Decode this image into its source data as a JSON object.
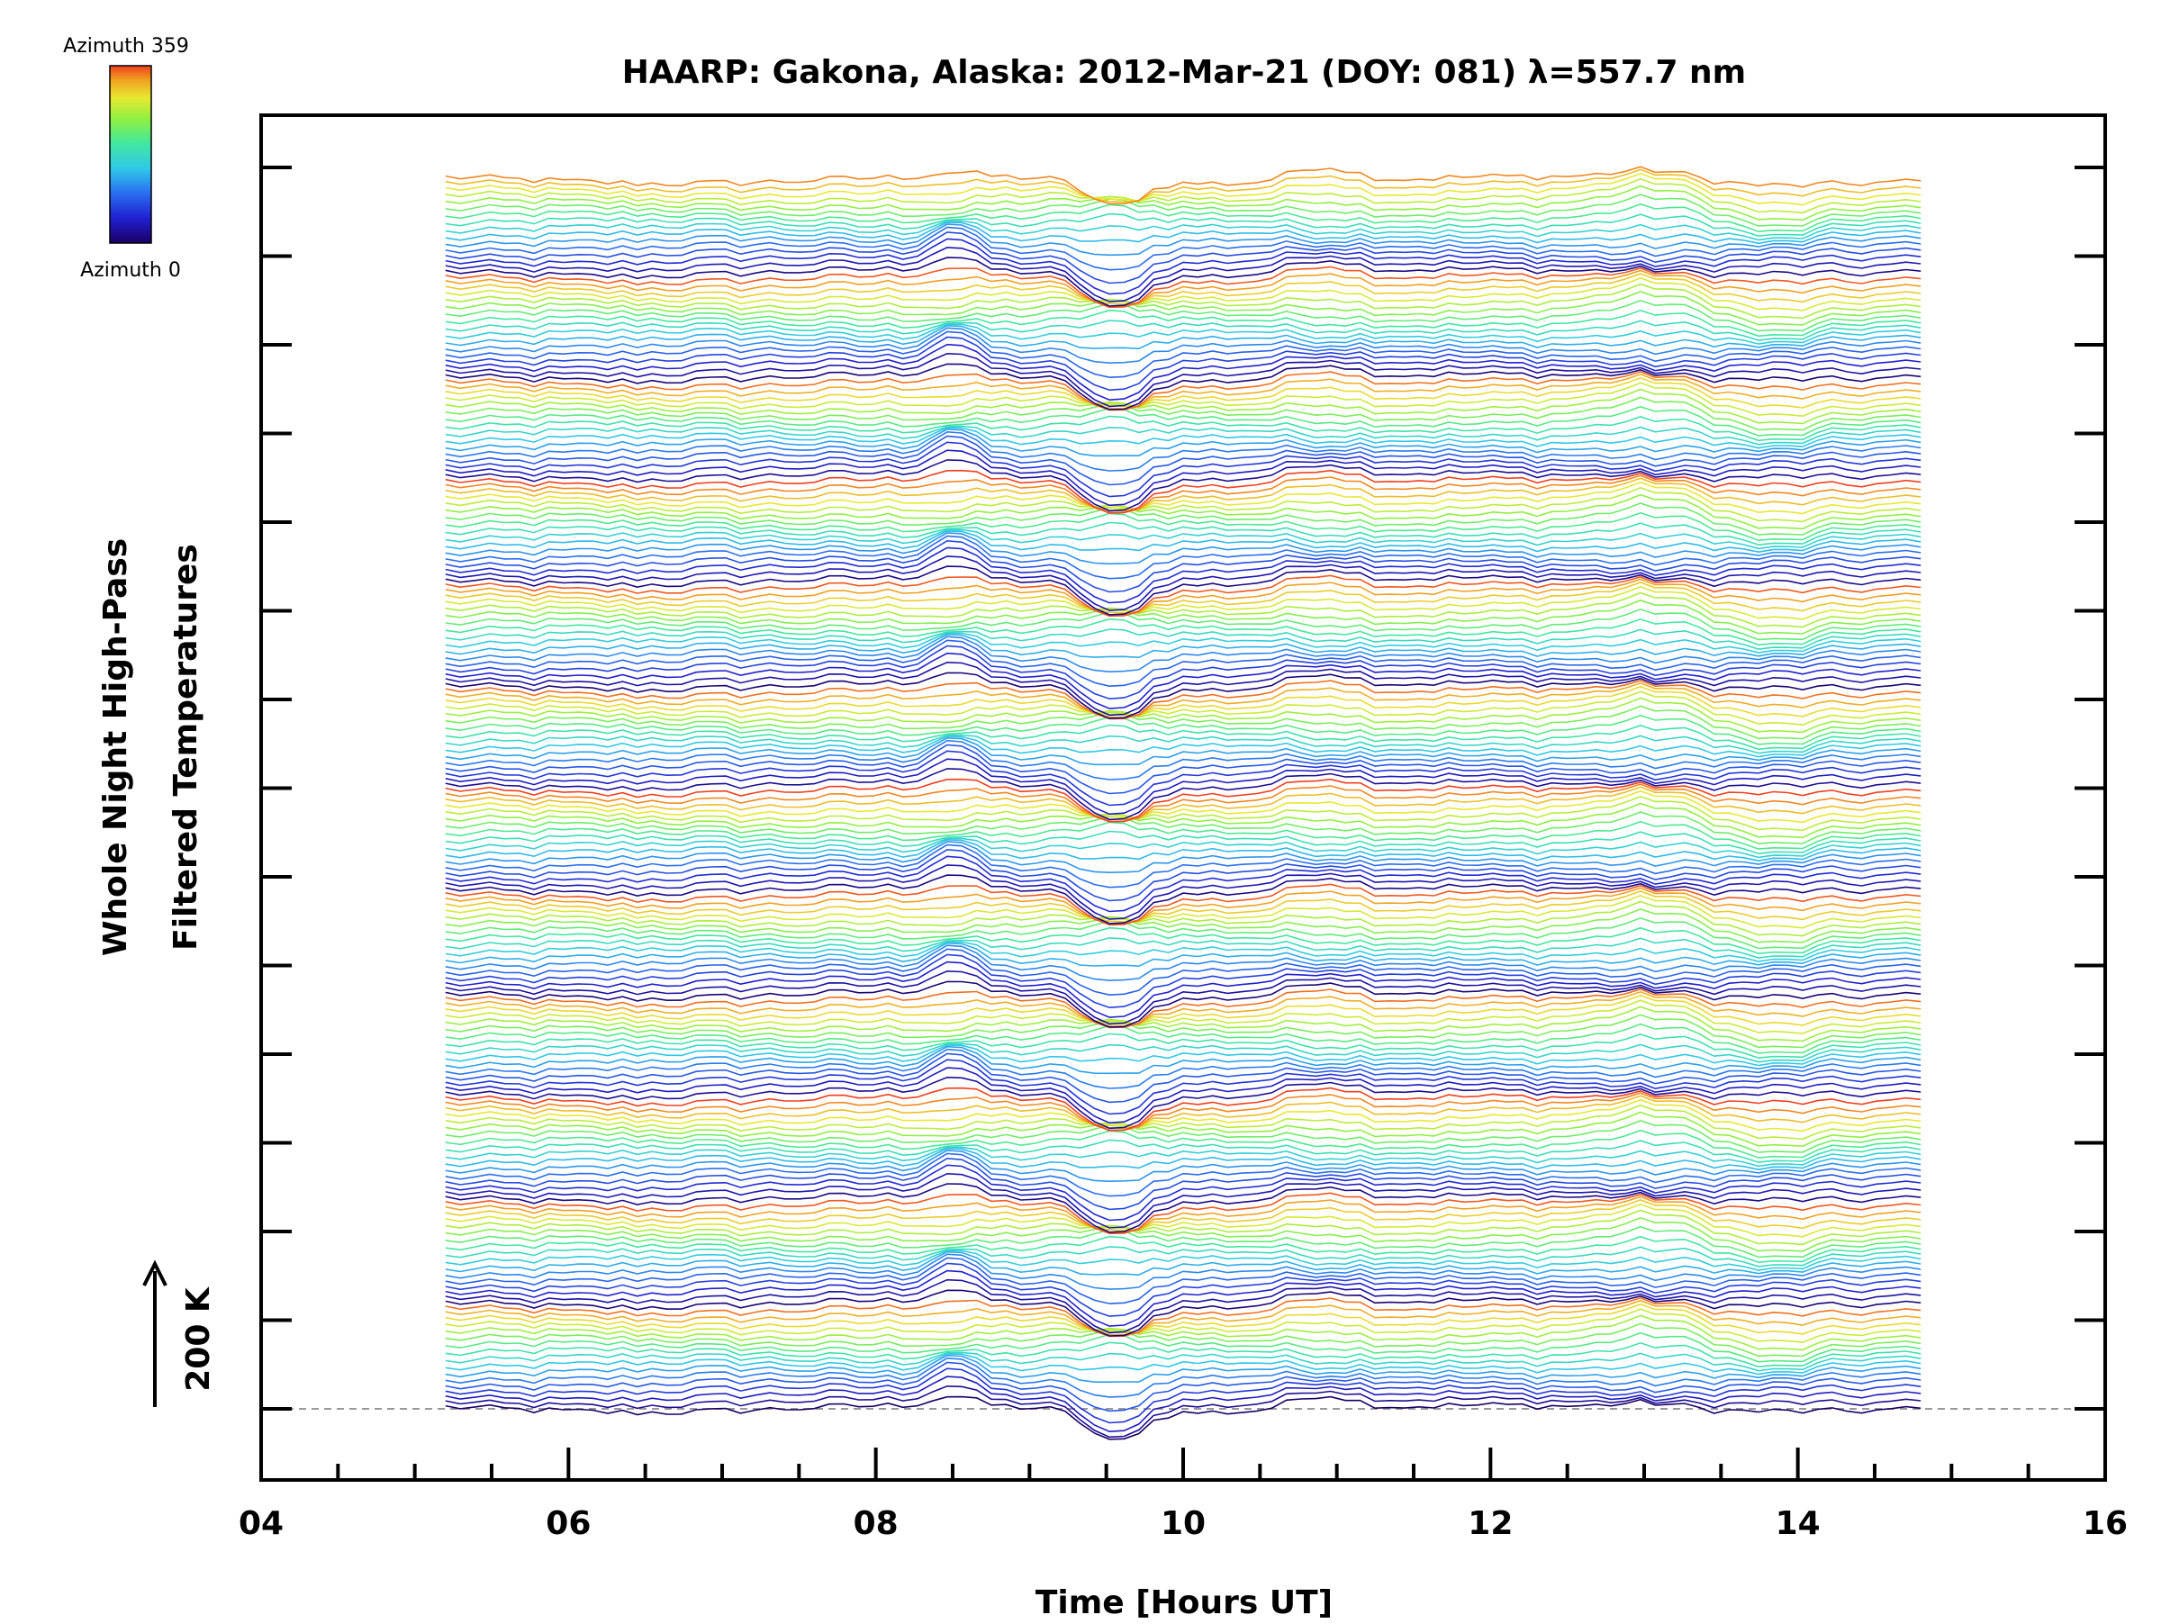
{
  "chart_data": {
    "type": "line",
    "title": "HAARP: Gakona,  Alaska: 2012-Mar-21 (DOY: 081) λ=557.7 nm",
    "xlabel": "Time [Hours UT]",
    "ylabel": "Whole Night High-Pass",
    "ylabel2": "Filtered Temperatures",
    "scale_bar_label": "200 K",
    "xlim": [
      4,
      16
    ],
    "x_ticks": [
      "04",
      "06",
      "08",
      "10",
      "12",
      "14",
      "16"
    ],
    "x_range_data": [
      5.2,
      14.8
    ],
    "colorbar": {
      "top_label": "Azimuth 359",
      "bottom_label": "Azimuth 0",
      "colors": [
        "#1a0066",
        "#2020d0",
        "#2a6ef0",
        "#30c8e8",
        "#40e8a0",
        "#90f040",
        "#e8e830",
        "#f0a020",
        "#f04020"
      ]
    },
    "series_count": 200,
    "groups": 12,
    "features": [
      {
        "x": 8.5,
        "amp": 0.9
      },
      {
        "x": 9.55,
        "amp": -1.3
      },
      {
        "x": 10.9,
        "amp": 0.6
      },
      {
        "x": 13.05,
        "amp": 0.5
      },
      {
        "x": 13.85,
        "amp": -0.7
      }
    ]
  }
}
